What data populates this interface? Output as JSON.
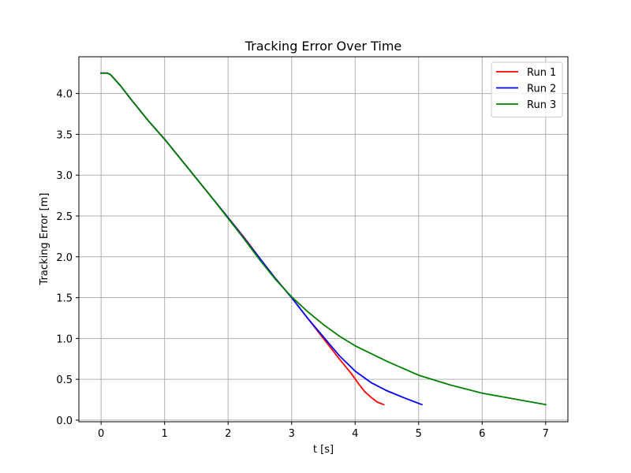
{
  "chart_data": {
    "type": "line",
    "title": "Tracking Error Over Time",
    "xlabel": "t [s]",
    "ylabel": "Tracking Error [m]",
    "xlim": [
      -0.35,
      7.35
    ],
    "ylim": [
      -0.02,
      4.45
    ],
    "xticks": [
      0,
      1,
      2,
      3,
      4,
      5,
      6,
      7
    ],
    "xtick_labels": [
      "0",
      "1",
      "2",
      "3",
      "4",
      "5",
      "6",
      "7"
    ],
    "yticks": [
      0.0,
      0.5,
      1.0,
      1.5,
      2.0,
      2.5,
      3.0,
      3.5,
      4.0
    ],
    "ytick_labels": [
      "0.0",
      "0.5",
      "1.0",
      "1.5",
      "2.0",
      "2.5",
      "3.0",
      "3.5",
      "4.0"
    ],
    "grid": true,
    "legend_position": "top-right",
    "series": [
      {
        "name": "Run 1",
        "color": "#ff0000",
        "x": [
          0,
          0.1,
          0.15,
          0.3,
          0.5,
          0.75,
          1.0,
          1.25,
          1.5,
          1.75,
          2.0,
          2.25,
          2.5,
          2.75,
          3.0,
          3.25,
          3.5,
          3.75,
          3.95,
          4.05,
          4.15,
          4.25,
          4.35,
          4.45
        ],
        "y": [
          4.25,
          4.25,
          4.23,
          4.1,
          3.9,
          3.66,
          3.44,
          3.2,
          2.96,
          2.72,
          2.48,
          2.24,
          1.98,
          1.73,
          1.5,
          1.25,
          1.0,
          0.75,
          0.56,
          0.45,
          0.35,
          0.28,
          0.22,
          0.19
        ]
      },
      {
        "name": "Run 2",
        "color": "#0000ff",
        "x": [
          0,
          0.1,
          0.15,
          0.3,
          0.5,
          0.75,
          1.0,
          1.25,
          1.5,
          1.75,
          2.0,
          2.25,
          2.5,
          2.75,
          3.0,
          3.25,
          3.5,
          3.75,
          4.0,
          4.25,
          4.5,
          4.75,
          5.05
        ],
        "y": [
          4.25,
          4.25,
          4.23,
          4.1,
          3.9,
          3.66,
          3.44,
          3.2,
          2.96,
          2.72,
          2.48,
          2.23,
          1.98,
          1.73,
          1.5,
          1.25,
          1.02,
          0.79,
          0.6,
          0.46,
          0.36,
          0.28,
          0.19
        ]
      },
      {
        "name": "Run 3",
        "color": "#008000",
        "x": [
          0,
          0.1,
          0.15,
          0.3,
          0.5,
          0.75,
          1.0,
          1.25,
          1.5,
          1.75,
          2.0,
          2.25,
          2.5,
          2.75,
          3.0,
          3.25,
          3.5,
          3.75,
          4.0,
          4.5,
          5.0,
          5.5,
          6.0,
          6.5,
          7.0
        ],
        "y": [
          4.25,
          4.25,
          4.23,
          4.1,
          3.9,
          3.66,
          3.44,
          3.2,
          2.96,
          2.72,
          2.47,
          2.22,
          1.96,
          1.72,
          1.51,
          1.33,
          1.17,
          1.03,
          0.91,
          0.72,
          0.55,
          0.43,
          0.33,
          0.26,
          0.19
        ]
      }
    ]
  }
}
